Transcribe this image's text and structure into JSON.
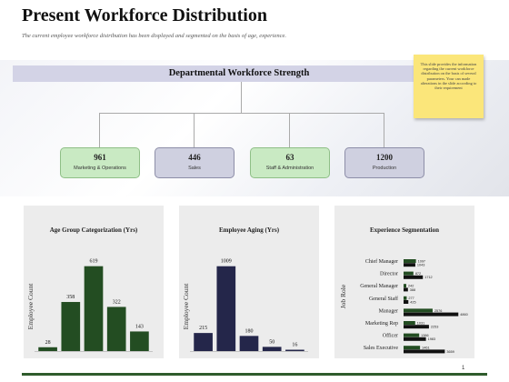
{
  "title": "Present Workforce Distribution",
  "subtitle": "The current employee workforce distribution has been displayed and segmented on the basis of age, experience.",
  "department_bar": "Departmental Workforce Strength",
  "note": "This slide provides the information regarding the current workforce distribution on the basis of several parameters. Your can made alterations in the slide according to their requirement",
  "departments": [
    {
      "count": "961",
      "label": "Marketing & Operations",
      "style": "green"
    },
    {
      "count": "446",
      "label": "Sales",
      "style": "lavender"
    },
    {
      "count": "63",
      "label": "Staff & Administration",
      "style": "green"
    },
    {
      "count": "1200",
      "label": "Production",
      "style": "lavender"
    }
  ],
  "page_number": "1",
  "colors": {
    "dark_green": "#234d22",
    "navy": "#24264a",
    "lavender": "#cfd0e0",
    "light_green": "#c9eac3",
    "panel": "#ececec"
  },
  "chart_data": [
    {
      "type": "bar",
      "title": "Age Group Categorization (Yrs)",
      "ylabel": "Employee Count",
      "xlabel": "",
      "values": [
        28,
        358,
        619,
        322,
        143
      ],
      "ylim": [
        0,
        650
      ],
      "color": "#234d22"
    },
    {
      "type": "bar",
      "title": "Employee Aging (Yrs)",
      "ylabel": "Employee Count",
      "xlabel": "",
      "values": [
        215,
        1009,
        180,
        50,
        16
      ],
      "ylim": [
        0,
        1060
      ],
      "color": "#24264a"
    },
    {
      "type": "bar",
      "orientation": "horizontal",
      "title": "Experience Segmentation",
      "ylabel": "Job Role",
      "categories": [
        "Chief Manager",
        "Director",
        "General Manager",
        "General Staff",
        "Manager",
        "Marketing Rep",
        "Officer",
        "Sales Executive"
      ],
      "series": [
        {
          "values": [
            1097,
            872,
            242,
            277,
            2576,
            1031,
            1386,
            1461
          ],
          "color": "#234d22"
        },
        {
          "values": [
            1043,
            1712,
            388,
            425,
            4860,
            2253,
            1983,
            3659
          ],
          "color": "#111111"
        }
      ],
      "xlim": [
        0,
        5000
      ]
    }
  ]
}
